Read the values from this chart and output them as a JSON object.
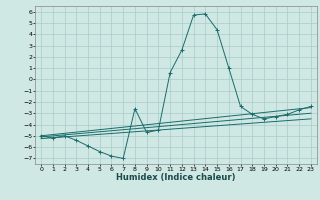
{
  "title": "",
  "xlabel": "Humidex (Indice chaleur)",
  "background_color": "#cfe8e3",
  "grid_color": "#a8cccc",
  "line_color": "#1a6b6b",
  "ylim": [
    -7.5,
    6.5
  ],
  "xlim": [
    -0.5,
    23.5
  ],
  "yticks": [
    -7,
    -6,
    -5,
    -4,
    -3,
    -2,
    -1,
    0,
    1,
    2,
    3,
    4,
    5,
    6
  ],
  "xticks": [
    0,
    1,
    2,
    3,
    4,
    5,
    6,
    7,
    8,
    9,
    10,
    11,
    12,
    13,
    14,
    15,
    16,
    17,
    18,
    19,
    20,
    21,
    22,
    23
  ],
  "series": [
    [
      0,
      -5.0
    ],
    [
      1,
      -5.2
    ],
    [
      2,
      -5.0
    ],
    [
      3,
      -5.4
    ],
    [
      4,
      -5.9
    ],
    [
      5,
      -6.4
    ],
    [
      6,
      -6.8
    ],
    [
      7,
      -7.0
    ],
    [
      8,
      -2.6
    ],
    [
      9,
      -4.7
    ],
    [
      10,
      -4.5
    ],
    [
      11,
      0.6
    ],
    [
      12,
      2.6
    ],
    [
      13,
      5.7
    ],
    [
      14,
      5.8
    ],
    [
      15,
      4.4
    ],
    [
      16,
      1.0
    ],
    [
      17,
      -2.4
    ],
    [
      18,
      -3.1
    ],
    [
      19,
      -3.5
    ],
    [
      20,
      -3.3
    ],
    [
      21,
      -3.1
    ],
    [
      22,
      -2.7
    ],
    [
      23,
      -2.4
    ]
  ],
  "line2": [
    [
      0,
      -5.0
    ],
    [
      23,
      -2.5
    ]
  ],
  "line3": [
    [
      0,
      -5.1
    ],
    [
      23,
      -3.0
    ]
  ],
  "line4": [
    [
      0,
      -5.25
    ],
    [
      23,
      -3.5
    ]
  ]
}
